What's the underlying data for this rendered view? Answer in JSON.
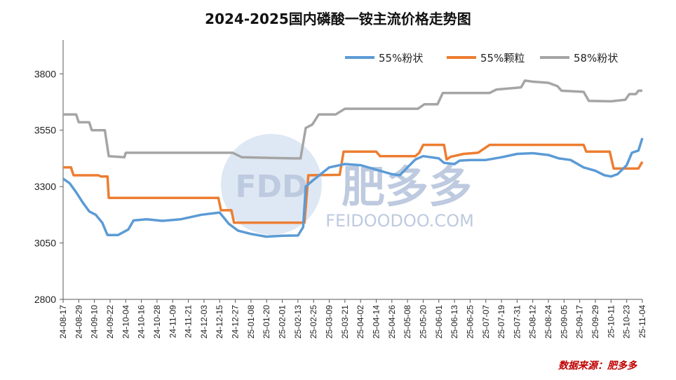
{
  "chart_data": {
    "type": "line",
    "title": "2024-2025国内磷酸一铵主流价格走势图",
    "source_note": "数据来源：肥多多",
    "watermark": {
      "logo_text": "FDD",
      "brand_cn": "肥多多",
      "brand_url": "FEIDOODOO.COM"
    },
    "ylim": [
      2800,
      3950
    ],
    "yticks": [
      2800,
      3050,
      3300,
      3550,
      3800
    ],
    "x_start": "2024-08-17",
    "x_end": "2025-11-04",
    "xticks": [
      "24-08-17",
      "24-08-29",
      "24-09-10",
      "24-09-22",
      "24-10-04",
      "24-10-16",
      "24-10-28",
      "24-11-09",
      "24-11-21",
      "24-12-03",
      "24-12-15",
      "24-12-27",
      "25-01-08",
      "25-01-20",
      "25-02-01",
      "25-02-13",
      "25-02-25",
      "25-03-09",
      "25-03-21",
      "25-04-02",
      "25-04-14",
      "25-04-26",
      "25-05-08",
      "25-05-20",
      "25-06-01",
      "25-06-13",
      "25-06-25",
      "25-07-07",
      "25-07-19",
      "25-07-31",
      "25-08-12",
      "25-08-24",
      "25-09-05",
      "25-09-17",
      "25-09-29",
      "25-10-11",
      "25-10-23",
      "25-11-04"
    ],
    "legend_position": "top-right",
    "series": [
      {
        "name": "55%粉状",
        "color": "#5b9bd5",
        "points": [
          [
            "2024-08-17",
            3335
          ],
          [
            "2024-08-22",
            3315
          ],
          [
            "2024-08-27",
            3275
          ],
          [
            "2024-09-01",
            3230
          ],
          [
            "2024-09-06",
            3190
          ],
          [
            "2024-09-11",
            3175
          ],
          [
            "2024-09-16",
            3140
          ],
          [
            "2024-09-20",
            3085
          ],
          [
            "2024-09-28",
            3085
          ],
          [
            "2024-10-06",
            3110
          ],
          [
            "2024-10-10",
            3150
          ],
          [
            "2024-10-20",
            3155
          ],
          [
            "2024-11-01",
            3148
          ],
          [
            "2024-11-15",
            3155
          ],
          [
            "2024-12-01",
            3175
          ],
          [
            "2024-12-15",
            3185
          ],
          [
            "2024-12-22",
            3135
          ],
          [
            "2024-12-29",
            3105
          ],
          [
            "2025-01-08",
            3090
          ],
          [
            "2025-01-20",
            3078
          ],
          [
            "2025-02-01",
            3082
          ],
          [
            "2025-02-13",
            3083
          ],
          [
            "2025-02-17",
            3120
          ],
          [
            "2025-02-19",
            3300
          ],
          [
            "2025-02-25",
            3330
          ],
          [
            "2025-03-09",
            3385
          ],
          [
            "2025-03-21",
            3400
          ],
          [
            "2025-04-02",
            3395
          ],
          [
            "2025-04-14",
            3375
          ],
          [
            "2025-04-26",
            3355
          ],
          [
            "2025-05-02",
            3350
          ],
          [
            "2025-05-08",
            3385
          ],
          [
            "2025-05-14",
            3420
          ],
          [
            "2025-05-20",
            3435
          ],
          [
            "2025-06-01",
            3425
          ],
          [
            "2025-06-05",
            3405
          ],
          [
            "2025-06-13",
            3400
          ],
          [
            "2025-06-17",
            3415
          ],
          [
            "2025-06-25",
            3418
          ],
          [
            "2025-07-07",
            3418
          ],
          [
            "2025-07-19",
            3430
          ],
          [
            "2025-07-31",
            3445
          ],
          [
            "2025-08-12",
            3448
          ],
          [
            "2025-08-24",
            3440
          ],
          [
            "2025-09-01",
            3425
          ],
          [
            "2025-09-10",
            3418
          ],
          [
            "2025-09-20",
            3385
          ],
          [
            "2025-09-29",
            3370
          ],
          [
            "2025-10-06",
            3350
          ],
          [
            "2025-10-11",
            3345
          ],
          [
            "2025-10-16",
            3355
          ],
          [
            "2025-10-23",
            3395
          ],
          [
            "2025-10-27",
            3450
          ],
          [
            "2025-11-01",
            3460
          ],
          [
            "2025-11-04",
            3515
          ]
        ]
      },
      {
        "name": "55%颗粒",
        "color": "#ed7d31",
        "points": [
          [
            "2024-08-17",
            3385
          ],
          [
            "2024-08-23",
            3385
          ],
          [
            "2024-08-25",
            3350
          ],
          [
            "2024-09-13",
            3350
          ],
          [
            "2024-09-15",
            3345
          ],
          [
            "2024-09-20",
            3345
          ],
          [
            "2024-09-21",
            3250
          ],
          [
            "2024-12-14",
            3250
          ],
          [
            "2024-12-16",
            3195
          ],
          [
            "2024-12-24",
            3195
          ],
          [
            "2024-12-26",
            3140
          ],
          [
            "2025-02-18",
            3140
          ],
          [
            "2025-02-21",
            3350
          ],
          [
            "2025-03-17",
            3352
          ],
          [
            "2025-03-20",
            3455
          ],
          [
            "2025-04-14",
            3455
          ],
          [
            "2025-04-17",
            3435
          ],
          [
            "2025-05-14",
            3435
          ],
          [
            "2025-05-17",
            3450
          ],
          [
            "2025-05-20",
            3485
          ],
          [
            "2025-06-05",
            3485
          ],
          [
            "2025-06-07",
            3420
          ],
          [
            "2025-06-10",
            3432
          ],
          [
            "2025-06-20",
            3445
          ],
          [
            "2025-07-01",
            3450
          ],
          [
            "2025-07-10",
            3485
          ],
          [
            "2025-09-20",
            3485
          ],
          [
            "2025-09-22",
            3455
          ],
          [
            "2025-10-10",
            3455
          ],
          [
            "2025-10-13",
            3380
          ],
          [
            "2025-11-01",
            3380
          ],
          [
            "2025-11-03",
            3400
          ],
          [
            "2025-11-04",
            3410
          ]
        ]
      },
      {
        "name": "58%粉状",
        "color": "#a5a5a5",
        "points": [
          [
            "2024-08-17",
            3620
          ],
          [
            "2024-08-27",
            3620
          ],
          [
            "2024-08-29",
            3585
          ],
          [
            "2024-09-06",
            3585
          ],
          [
            "2024-09-08",
            3550
          ],
          [
            "2024-09-18",
            3550
          ],
          [
            "2024-09-21",
            3435
          ],
          [
            "2024-10-03",
            3430
          ],
          [
            "2024-10-04",
            3450
          ],
          [
            "2024-12-25",
            3450
          ],
          [
            "2025-01-01",
            3430
          ],
          [
            "2025-02-10",
            3425
          ],
          [
            "2025-02-15",
            3425
          ],
          [
            "2025-02-19",
            3560
          ],
          [
            "2025-02-24",
            3575
          ],
          [
            "2025-03-01",
            3620
          ],
          [
            "2025-03-14",
            3620
          ],
          [
            "2025-03-21",
            3645
          ],
          [
            "2025-05-16",
            3645
          ],
          [
            "2025-05-21",
            3665
          ],
          [
            "2025-05-31",
            3665
          ],
          [
            "2025-06-04",
            3715
          ],
          [
            "2025-07-10",
            3715
          ],
          [
            "2025-07-15",
            3730
          ],
          [
            "2025-08-03",
            3740
          ],
          [
            "2025-08-06",
            3770
          ],
          [
            "2025-08-12",
            3765
          ],
          [
            "2025-08-24",
            3760
          ],
          [
            "2025-08-31",
            3745
          ],
          [
            "2025-09-03",
            3725
          ],
          [
            "2025-09-20",
            3720
          ],
          [
            "2025-09-24",
            3680
          ],
          [
            "2025-10-11",
            3678
          ],
          [
            "2025-10-22",
            3685
          ],
          [
            "2025-10-25",
            3710
          ],
          [
            "2025-10-30",
            3710
          ],
          [
            "2025-11-01",
            3725
          ],
          [
            "2025-11-04",
            3725
          ]
        ]
      }
    ]
  }
}
